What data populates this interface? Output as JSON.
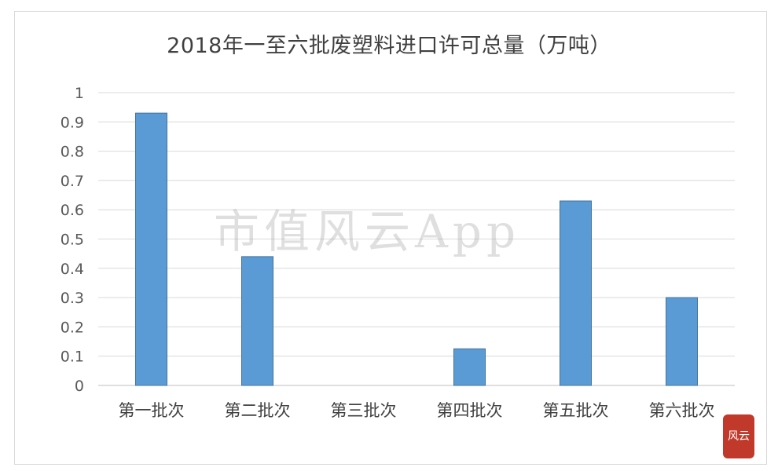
{
  "chart_data": {
    "type": "bar",
    "title": "2018年一至六批废塑料进口许可总量（万吨）",
    "categories": [
      "第一批次",
      "第二批次",
      "第三批次",
      "第四批次",
      "第五批次",
      "第六批次"
    ],
    "values": [
      0.93,
      0.44,
      0,
      0.125,
      0.63,
      0.3
    ],
    "ylim": [
      0,
      1
    ],
    "yticks": [
      "0",
      "0.1",
      "0.2",
      "0.3",
      "0.4",
      "0.5",
      "0.6",
      "0.7",
      "0.8",
      "0.9",
      "1"
    ],
    "grid": true,
    "bar_color": "#5b9bd5",
    "bar_edge_color": "#41719c",
    "gridline_color": "#d9d9d9"
  },
  "watermark": "市值风云App",
  "seal_text": "风云"
}
